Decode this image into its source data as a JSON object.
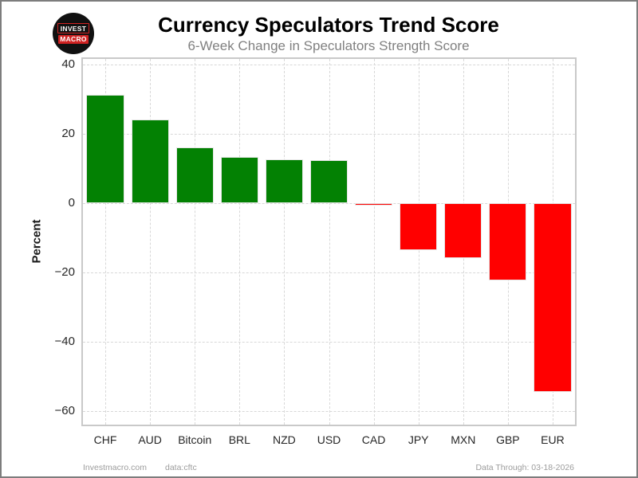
{
  "header": {
    "title": "Currency Speculators Trend Score",
    "subtitle": "6-Week Change in Speculators Strength Score",
    "logo": {
      "line1": "INVEST",
      "line2": "MACRO"
    }
  },
  "footer": {
    "site": "Investmacro.com",
    "source": "data:cftc",
    "data_through": "Data Through: 03-18-2026"
  },
  "chart_data": {
    "type": "bar",
    "title": "Currency Speculators Trend Score",
    "subtitle": "6-Week Change in Speculators Strength Score",
    "xlabel": "",
    "ylabel": "Percent",
    "categories": [
      "CHF",
      "AUD",
      "Bitcoin",
      "BRL",
      "NZD",
      "USD",
      "CAD",
      "JPY",
      "MXN",
      "GBP",
      "EUR"
    ],
    "values": [
      31.3,
      24.1,
      16.1,
      13.3,
      12.7,
      12.4,
      -0.8,
      -13.6,
      -15.9,
      -22.2,
      -54.4
    ],
    "ylim": [
      -63.9,
      41.6
    ],
    "yticks": [
      40,
      20,
      0,
      -20,
      -40,
      -60
    ],
    "grid": "dashed",
    "legend": "none",
    "colors": {
      "positive": "#038103",
      "negative": "#ff0000"
    }
  }
}
